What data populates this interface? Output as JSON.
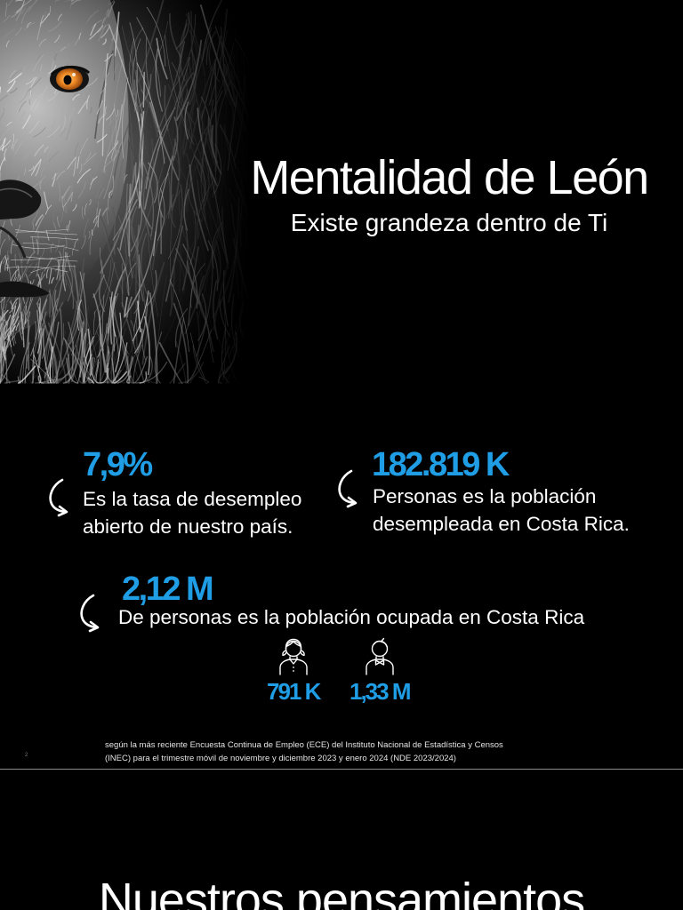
{
  "slides": {
    "cover": {
      "title": "Mentalidad de León",
      "subtitle": "Existe grandeza dentro de Ti"
    },
    "stats": {
      "unemployment_rate": {
        "value": "7,9%",
        "line1": "Es la tasa de desempleo",
        "line2": "abierto de nuestro país."
      },
      "unemployed": {
        "value": "182.819 K",
        "line1": "Personas es la población",
        "line2": "desempleada en Costa Rica."
      },
      "employed": {
        "value": "2,12 M",
        "text": "De personas es la población ocupada en Costa Rica",
        "breakdown": [
          {
            "icon": "woman-icon",
            "value": "791 K"
          },
          {
            "icon": "man-icon",
            "value": "1,33 M"
          }
        ]
      },
      "arrow_icon": "curved-arrow-icon",
      "footnote": {
        "line1": "según la más reciente Encuesta Continua de Empleo (ECE) del Instituto Nacional de Estadística y Censos",
        "line2": "(INEC) para el trimestre móvil de noviembre y diciembre 2023 y enero 2024 (NDE 2023/2024)"
      },
      "slide_number": "2"
    },
    "next": {
      "title": "Nuestros pensamientos"
    }
  },
  "colors": {
    "background": "#000000",
    "text": "#ffffff",
    "accent": "#1f9de5",
    "lion_eye": "#f08a24",
    "page_divider": "#8a8a8a"
  }
}
